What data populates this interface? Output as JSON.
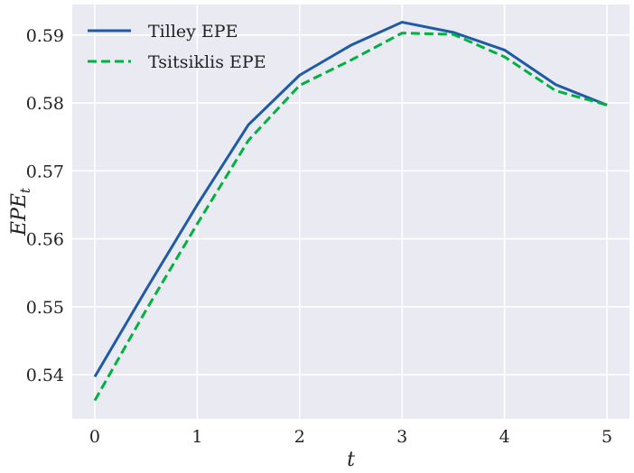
{
  "chart_data": {
    "type": "line",
    "x": [
      0,
      0.5,
      1,
      1.5,
      2,
      2.5,
      3,
      3.5,
      4,
      4.5,
      5
    ],
    "series": [
      {
        "name": "Tilley EPE",
        "color": "#1f5aa6",
        "style": "solid",
        "values": [
          0.5397,
          0.5525,
          0.565,
          0.5768,
          0.5841,
          0.5885,
          0.5919,
          0.5904,
          0.5878,
          0.5827,
          0.5797
        ]
      },
      {
        "name": "Tsitsiklis EPE",
        "color": "#00b140",
        "style": "dashed",
        "values": [
          0.5362,
          0.5495,
          0.5622,
          0.5745,
          0.5826,
          0.5863,
          0.5903,
          0.5901,
          0.5868,
          0.5818,
          0.5797
        ]
      }
    ],
    "xlabel": "t",
    "ylabel": "EPE",
    "ylabel_subscript": "t",
    "xticks": [
      0,
      1,
      2,
      3,
      4,
      5
    ],
    "xtick_labels": [
      "0",
      "1",
      "2",
      "3",
      "4",
      "5"
    ],
    "yticks": [
      0.54,
      0.55,
      0.56,
      0.57,
      0.58,
      0.59
    ],
    "ytick_labels": [
      "0.54",
      "0.55",
      "0.56",
      "0.57",
      "0.58",
      "0.59"
    ],
    "xlim": [
      -0.22,
      5.22
    ],
    "ylim": [
      0.5335,
      0.5945
    ],
    "grid": true,
    "legend_position": "top-left",
    "background": "#eaeaf2"
  }
}
